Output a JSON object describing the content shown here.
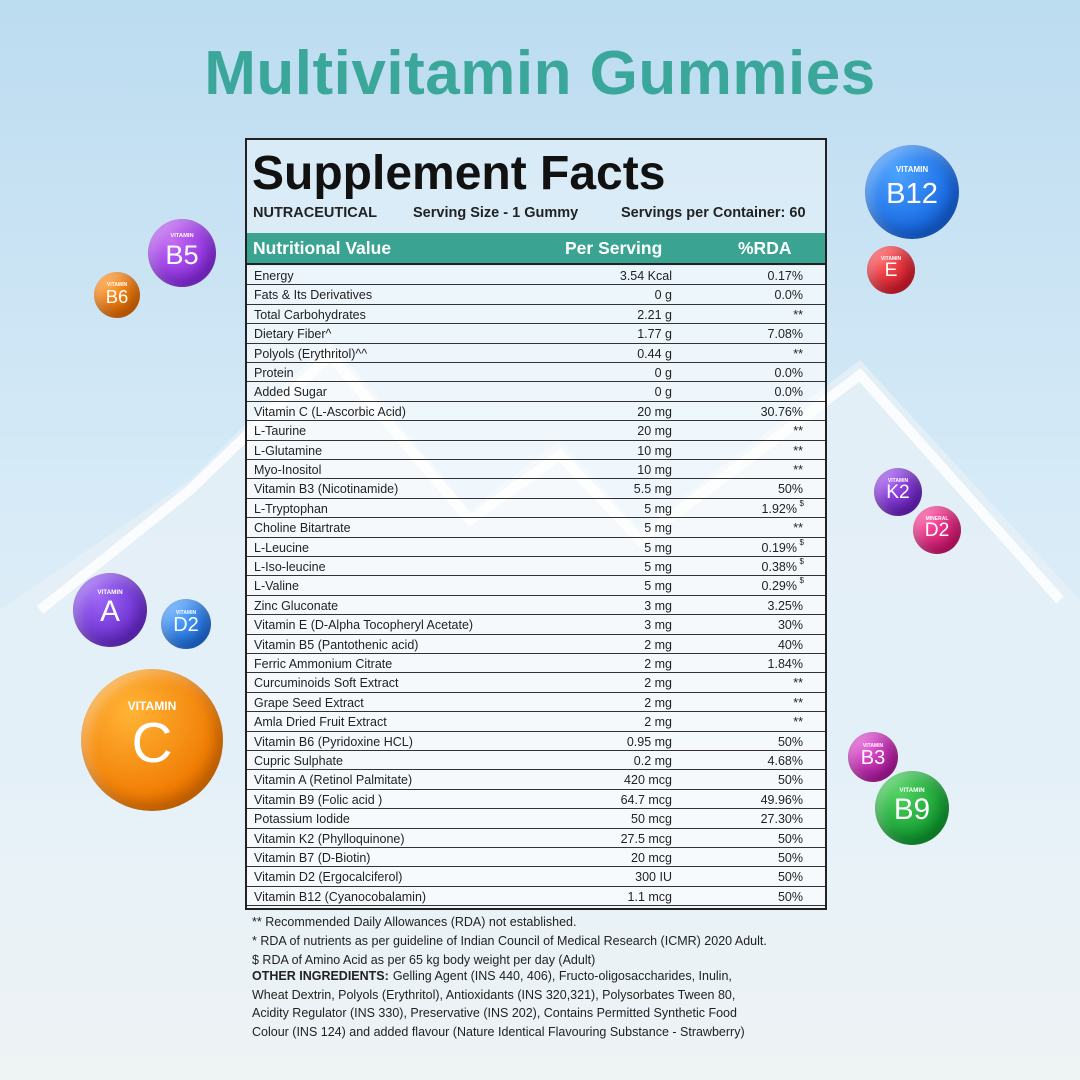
{
  "title": "Multivitamin Gummies",
  "label": {
    "heading": "Supplement Facts",
    "brand": "NUTRACEUTICAL",
    "serving_size": "Serving Size - 1 Gummy",
    "servings": "Servings per Container: 60",
    "columns": [
      "Nutritional Value",
      "Per Serving",
      "%RDA"
    ],
    "rows": [
      [
        "Energy",
        "3.54 Kcal",
        "0.17%"
      ],
      [
        "Fats & Its Derivatives",
        "0 g",
        "0.0%"
      ],
      [
        "Total Carbohydrates",
        "2.21 g",
        "**"
      ],
      [
        "Dietary Fiber^",
        "1.77 g",
        "7.08%"
      ],
      [
        "Polyols (Erythritol)^^",
        "0.44 g",
        "**"
      ],
      [
        "Protein",
        "0 g",
        "0.0%"
      ],
      [
        "Added Sugar",
        "0 g",
        "0.0%"
      ],
      [
        "Vitamin C (L-Ascorbic Acid)",
        "20 mg",
        "30.76%"
      ],
      [
        "L-Taurine",
        "20 mg",
        "**"
      ],
      [
        "L-Glutamine",
        "10 mg",
        "**"
      ],
      [
        "Myo-Inositol",
        "10 mg",
        "**"
      ],
      [
        "Vitamin B3 (Nicotinamide)",
        "5.5 mg",
        "50%"
      ],
      [
        "L-Tryptophan",
        "5 mg",
        "1.92%",
        "$"
      ],
      [
        "Choline Bitartrate",
        "5 mg",
        "**"
      ],
      [
        "L-Leucine",
        "5 mg",
        "0.19%",
        "$"
      ],
      [
        "L-Iso-leucine",
        "5 mg",
        "0.38%",
        "$"
      ],
      [
        "L-Valine",
        "5 mg",
        "0.29%",
        "$"
      ],
      [
        "Zinc Gluconate",
        "3 mg",
        "3.25%"
      ],
      [
        "Vitamin E (D-Alpha Tocopheryl Acetate)",
        "3 mg",
        "30%"
      ],
      [
        "Vitamin B5 (Pantothenic acid)",
        "2 mg",
        "40%"
      ],
      [
        "Ferric Ammonium Citrate",
        "2 mg",
        "1.84%"
      ],
      [
        "Curcuminoids Soft Extract",
        "2 mg",
        "**"
      ],
      [
        "Grape Seed Extract",
        "2 mg",
        "**"
      ],
      [
        "Amla Dried Fruit Extract",
        "2 mg",
        "**"
      ],
      [
        "Vitamin B6 (Pyridoxine HCL)",
        "0.95 mg",
        "50%"
      ],
      [
        "Cupric Sulphate",
        "0.2 mg",
        "4.68%"
      ],
      [
        "Vitamin A (Retinol Palmitate)",
        "420 mcg",
        "50%"
      ],
      [
        "Vitamin B9 (Folic acid )",
        "64.7 mcg",
        "49.96%"
      ],
      [
        "Potassium Iodide",
        "50 mcg",
        "27.30%"
      ],
      [
        "Vitamin K2 (Phylloquinone)",
        "27.5 mcg",
        "50%"
      ],
      [
        "Vitamin B7 (D-Biotin)",
        "20 mcg",
        "50%"
      ],
      [
        "Vitamin D2 (Ergocalciferol)",
        "300 IU",
        "50%"
      ],
      [
        "Vitamin B12 (Cyanocobalamin)",
        "1.1 mcg",
        "50%"
      ]
    ]
  },
  "footnotes": [
    "** Recommended Daily Allowances (RDA) not established.",
    "* RDA of nutrients as per guideline of Indian Council of Medical Research (ICMR) 2020 Adult.",
    "$ RDA of Amino Acid as per 65 kg body weight per day (Adult)"
  ],
  "ingredients": {
    "heading": "OTHER INGREDIENTS:",
    "lines": [
      "Gelling Agent (INS 440, 406), Fructo-oligosaccharides, Inulin,",
      "Wheat Dextrin, Polyols (Erythritol), Antioxidants (INS 320,321), Polysorbates Tween 80,",
      "Acidity Regulator (INS 330), Preservative (INS 202), Contains Permitted Synthetic Food",
      "Colour (INS 124) and added flavour (Nature Identical Flavouring Substance - Strawberry)"
    ]
  },
  "bubbles": [
    {
      "top": "VITAMIN",
      "label": "B5"
    },
    {
      "top": "VITAMIN",
      "label": "B6"
    },
    {
      "top": "VITAMIN",
      "label": "B12"
    },
    {
      "top": "VITAMIN",
      "label": "E"
    },
    {
      "top": "VITAMIN",
      "label": "K2"
    },
    {
      "top": "MINERAL",
      "label": "D2"
    },
    {
      "top": "VITAMIN",
      "label": "A"
    },
    {
      "top": "VITAMIN",
      "label": "D2"
    },
    {
      "top": "VITAMIN",
      "label": "C"
    },
    {
      "top": "VITAMIN",
      "label": "B3"
    },
    {
      "top": "VITAMIN",
      "label": "B9"
    }
  ]
}
